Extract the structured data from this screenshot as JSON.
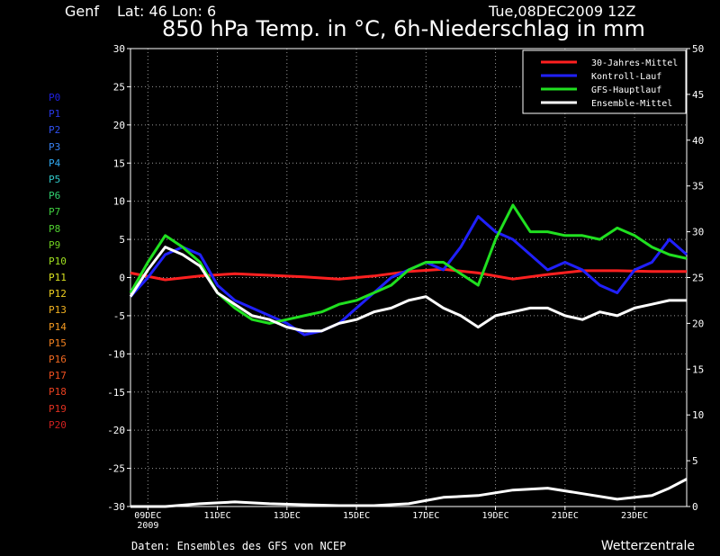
{
  "header": {
    "location": "Genf",
    "coords": "Lat: 46 Lon: 6",
    "run": "Tue,08DEC2009 12Z",
    "title": "850 hPa Temp. in °C, 6h-Niederschlag in mm"
  },
  "footer": {
    "source": "Daten: Ensembles des GFS von NCEP",
    "brand": "Wetterzentrale"
  },
  "members": [
    {
      "label": "P0",
      "color": "#2020e0"
    },
    {
      "label": "P1",
      "color": "#2838e8"
    },
    {
      "label": "P2",
      "color": "#3050f0"
    },
    {
      "label": "P3",
      "color": "#3880f0"
    },
    {
      "label": "P4",
      "color": "#30a8f0"
    },
    {
      "label": "P5",
      "color": "#30c8c8"
    },
    {
      "label": "P6",
      "color": "#30d070"
    },
    {
      "label": "P7",
      "color": "#40d040"
    },
    {
      "label": "P8",
      "color": "#50d030"
    },
    {
      "label": "P9",
      "color": "#70d020"
    },
    {
      "label": "P10",
      "color": "#a0e020"
    },
    {
      "label": "P11",
      "color": "#d8e020"
    },
    {
      "label": "P12",
      "color": "#f0d020"
    },
    {
      "label": "P13",
      "color": "#f0b020"
    },
    {
      "label": "P14",
      "color": "#f09820"
    },
    {
      "label": "P15",
      "color": "#f08020"
    },
    {
      "label": "P16",
      "color": "#f06820"
    },
    {
      "label": "P17",
      "color": "#f05020"
    },
    {
      "label": "P18",
      "color": "#e84020"
    },
    {
      "label": "P19",
      "color": "#e03020"
    },
    {
      "label": "P20",
      "color": "#d02020"
    }
  ],
  "chart_data": {
    "type": "line",
    "title": "850 hPa Temp. in °C, 6h-Niederschlag in mm",
    "x_unit": "days from run start (08DEC2009 12Z)",
    "x_ticks": [
      {
        "x": 0.5,
        "label": "09DEC",
        "sub": "2009"
      },
      {
        "x": 2.5,
        "label": "11DEC"
      },
      {
        "x": 4.5,
        "label": "13DEC"
      },
      {
        "x": 6.5,
        "label": "15DEC"
      },
      {
        "x": 8.5,
        "label": "17DEC"
      },
      {
        "x": 10.5,
        "label": "19DEC"
      },
      {
        "x": 12.5,
        "label": "21DEC"
      },
      {
        "x": 14.5,
        "label": "23DEC"
      }
    ],
    "xlim": [
      0,
      16
    ],
    "y_left": {
      "range": [
        -30,
        30
      ],
      "ticks": [
        -30,
        -25,
        -20,
        -15,
        -10,
        -5,
        0,
        5,
        10,
        15,
        20,
        25,
        30
      ]
    },
    "y_right": {
      "range": [
        0,
        50
      ],
      "ticks": [
        0,
        5,
        10,
        15,
        20,
        25,
        30,
        35,
        40,
        45,
        50
      ]
    },
    "grid": true,
    "legend": {
      "placement": "top-right",
      "entries": [
        {
          "name": "30-Jahres-Mittel",
          "color": "#ff2020"
        },
        {
          "name": "Kontroll-Lauf",
          "color": "#2020ff"
        },
        {
          "name": "GFS-Hauptlauf",
          "color": "#20e020"
        },
        {
          "name": "Ensemble-Mittel",
          "color": "#ffffff"
        }
      ]
    },
    "series": [
      {
        "name": "30-Jahres-Mittel",
        "color": "#ff2020",
        "width": 3,
        "x": [
          0,
          1,
          2,
          3,
          4,
          5,
          6,
          7,
          8,
          9,
          10,
          11,
          12,
          13,
          14,
          15,
          16
        ],
        "y": [
          0.6,
          -0.3,
          0.2,
          0.5,
          0.3,
          0.1,
          -0.2,
          0.2,
          0.8,
          1.1,
          0.6,
          -0.2,
          0.4,
          0.9,
          0.9,
          0.8,
          0.8
        ]
      },
      {
        "name": "Kontroll-Lauf",
        "color": "#2020ff",
        "width": 3,
        "x": [
          0,
          0.5,
          1,
          1.5,
          2,
          2.5,
          3,
          3.5,
          4,
          4.5,
          5,
          5.5,
          6,
          6.5,
          7,
          7.5,
          8,
          8.5,
          9,
          9.5,
          10,
          10.5,
          11,
          11.5,
          12,
          12.5,
          13,
          13.5,
          14,
          14.5,
          15,
          15.5,
          16
        ],
        "y": [
          -2.5,
          0,
          3,
          4,
          3,
          -1,
          -3,
          -4,
          -5,
          -6,
          -7.5,
          -7,
          -6,
          -4,
          -2,
          0,
          1,
          2,
          1,
          4,
          8,
          6,
          5,
          3,
          1,
          2,
          1,
          -1,
          -2,
          1,
          2,
          5,
          3
        ]
      },
      {
        "name": "GFS-Hauptlauf",
        "color": "#20e020",
        "width": 3,
        "x": [
          0,
          0.5,
          1,
          1.5,
          2,
          2.5,
          3,
          3.5,
          4,
          4.5,
          5,
          5.5,
          6,
          6.5,
          7,
          7.5,
          8,
          8.5,
          9,
          9.5,
          10,
          10.5,
          11,
          11.5,
          12,
          12.5,
          13,
          13.5,
          14,
          14.5,
          15,
          15.5,
          16
        ],
        "y": [
          -2,
          2,
          5.5,
          4,
          2,
          -2,
          -4,
          -5.5,
          -6,
          -5.5,
          -5,
          -4.5,
          -3.5,
          -3,
          -2,
          -1,
          1,
          2,
          2,
          0.5,
          -1,
          5,
          9.5,
          6,
          6,
          5.5,
          5.5,
          5,
          6.5,
          5.5,
          4,
          3,
          2.5
        ]
      },
      {
        "name": "Ensemble-Mittel",
        "color": "#ffffff",
        "width": 3,
        "x": [
          0,
          0.5,
          1,
          1.5,
          2,
          2.5,
          3,
          3.5,
          4,
          4.5,
          5,
          5.5,
          6,
          6.5,
          7,
          7.5,
          8,
          8.5,
          9,
          9.5,
          10,
          10.5,
          11,
          11.5,
          12,
          12.5,
          13,
          13.5,
          14,
          14.5,
          15,
          15.5,
          16
        ],
        "y": [
          -2.5,
          1,
          4,
          3,
          1.5,
          -2,
          -3.5,
          -5,
          -5.5,
          -6.5,
          -7,
          -7,
          -6,
          -5.5,
          -4.5,
          -4,
          -3,
          -2.5,
          -4,
          -5,
          -6.5,
          -5,
          -4.5,
          -4,
          -4,
          -5,
          -5.5,
          -4.5,
          -5,
          -4,
          -3.5,
          -3,
          -3
        ]
      },
      {
        "name": "Ensemble-Mittel Niederschlag",
        "color": "#ffffff",
        "width": 3,
        "axis": "right",
        "x": [
          0,
          1,
          2,
          3,
          4,
          5,
          6,
          7,
          8,
          9,
          10,
          11,
          12,
          13,
          14,
          15,
          15.5,
          16
        ],
        "y": [
          0,
          0,
          0.3,
          0.5,
          0.3,
          0.2,
          0.1,
          0.1,
          0.3,
          1.0,
          1.2,
          1.8,
          2.0,
          1.4,
          0.8,
          1.2,
          2.0,
          3.0
        ]
      }
    ]
  }
}
